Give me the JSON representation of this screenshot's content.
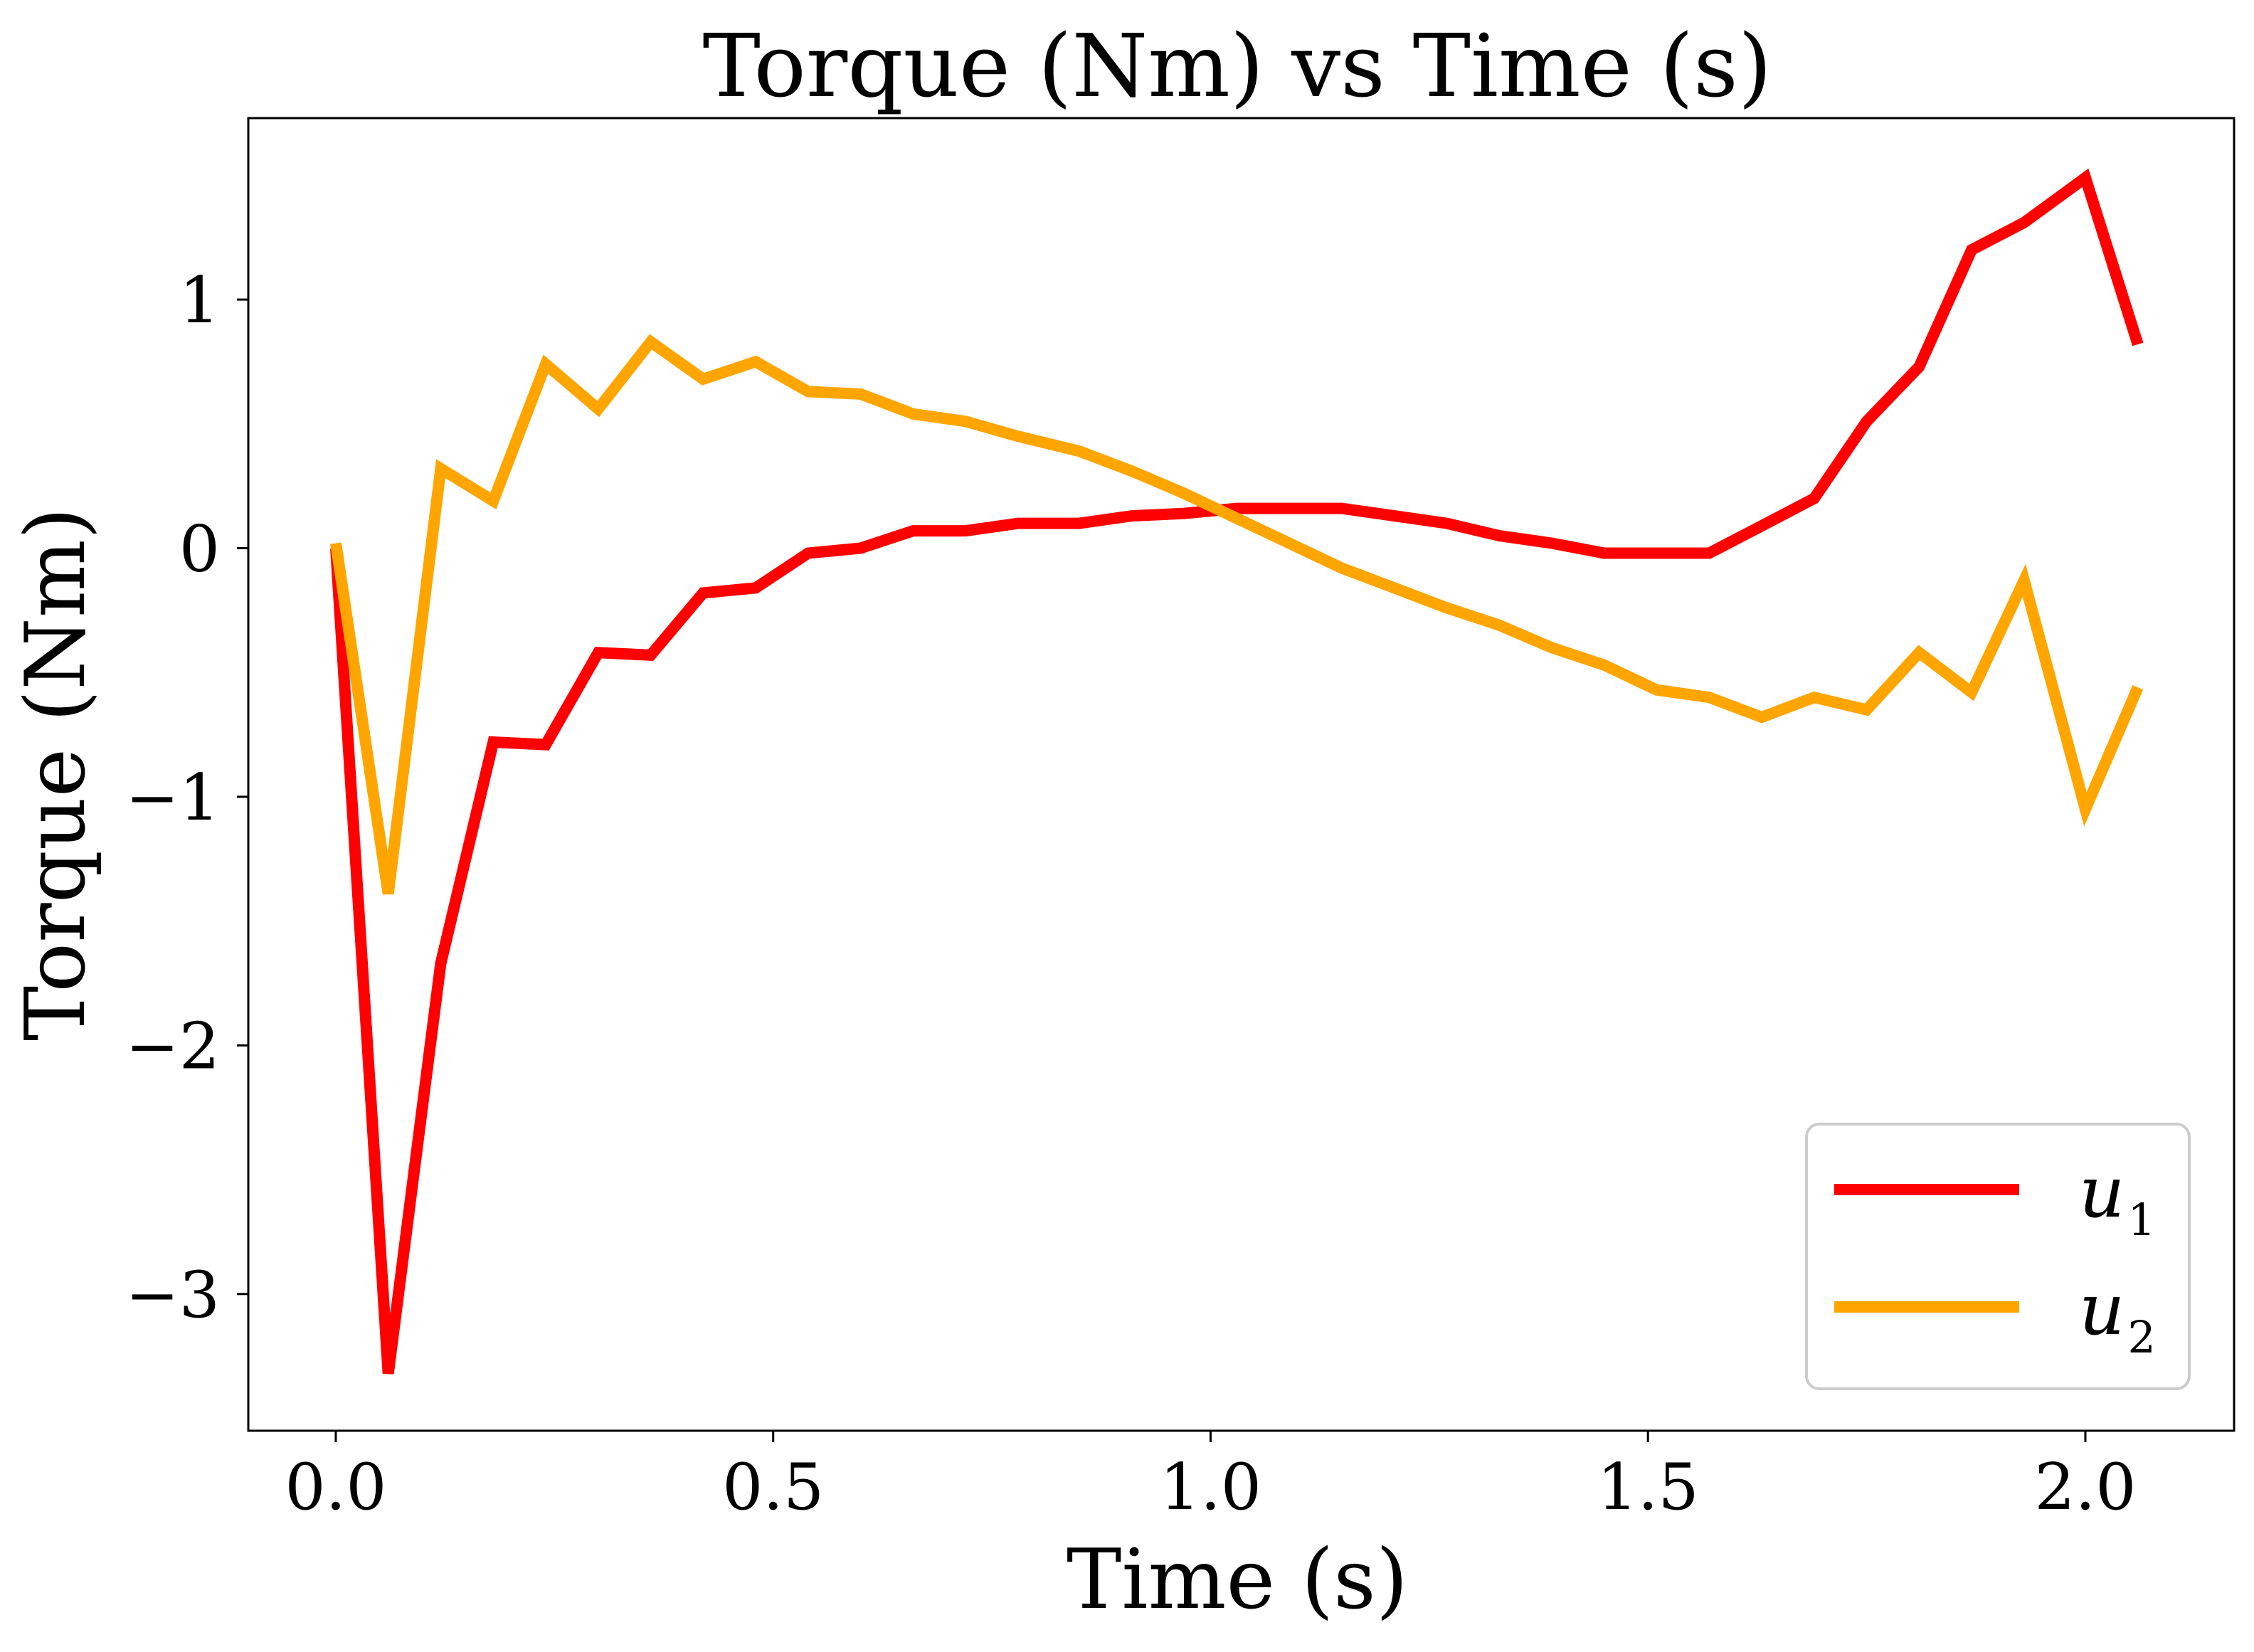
{
  "chart_data": {
    "type": "line",
    "title": "Torque (Nm) vs Time (s)",
    "xlabel": "Time (s)",
    "ylabel": "Torque (Nm)",
    "xlim": [
      -0.1,
      2.17
    ],
    "ylim": [
      -3.55,
      1.73
    ],
    "xticks": [
      0.0,
      0.5,
      1.0,
      1.5,
      2.0
    ],
    "xtick_labels": [
      "0.0",
      "0.5",
      "1.0",
      "1.5",
      "2.0"
    ],
    "yticks": [
      -3,
      -2,
      -1,
      0,
      1
    ],
    "ytick_labels": [
      "−3",
      "−2",
      "−1",
      "0",
      "1"
    ],
    "grid": false,
    "legend_position": "bottom-right",
    "x": [
      0.0,
      0.06,
      0.12,
      0.18,
      0.24,
      0.3,
      0.36,
      0.42,
      0.48,
      0.54,
      0.6,
      0.66,
      0.72,
      0.78,
      0.85,
      0.91,
      0.97,
      1.03,
      1.09,
      1.15,
      1.21,
      1.27,
      1.33,
      1.39,
      1.45,
      1.51,
      1.57,
      1.63,
      1.69,
      1.75,
      1.81,
      1.87,
      1.93,
      2.0,
      2.06
    ],
    "series": [
      {
        "name": "u",
        "subscript": "1",
        "color": "#ff0000",
        "values": [
          0.0,
          -3.32,
          -1.67,
          -0.78,
          -0.79,
          -0.42,
          -0.43,
          -0.18,
          -0.16,
          -0.02,
          0.0,
          0.07,
          0.07,
          0.1,
          0.1,
          0.13,
          0.14,
          0.16,
          0.16,
          0.16,
          0.13,
          0.1,
          0.05,
          0.02,
          -0.02,
          -0.02,
          -0.02,
          0.09,
          0.2,
          0.51,
          0.73,
          1.2,
          1.31,
          1.49,
          0.82
        ]
      },
      {
        "name": "u",
        "subscript": "2",
        "color": "#ffa500",
        "values": [
          0.02,
          -1.39,
          0.32,
          0.19,
          0.74,
          0.56,
          0.83,
          0.68,
          0.75,
          0.63,
          0.62,
          0.54,
          0.51,
          0.45,
          0.39,
          0.31,
          0.22,
          0.12,
          0.02,
          -0.08,
          -0.16,
          -0.24,
          -0.31,
          -0.4,
          -0.47,
          -0.57,
          -0.6,
          -0.68,
          -0.6,
          -0.65,
          -0.42,
          -0.58,
          -0.13,
          -1.05,
          -0.56
        ]
      }
    ]
  }
}
